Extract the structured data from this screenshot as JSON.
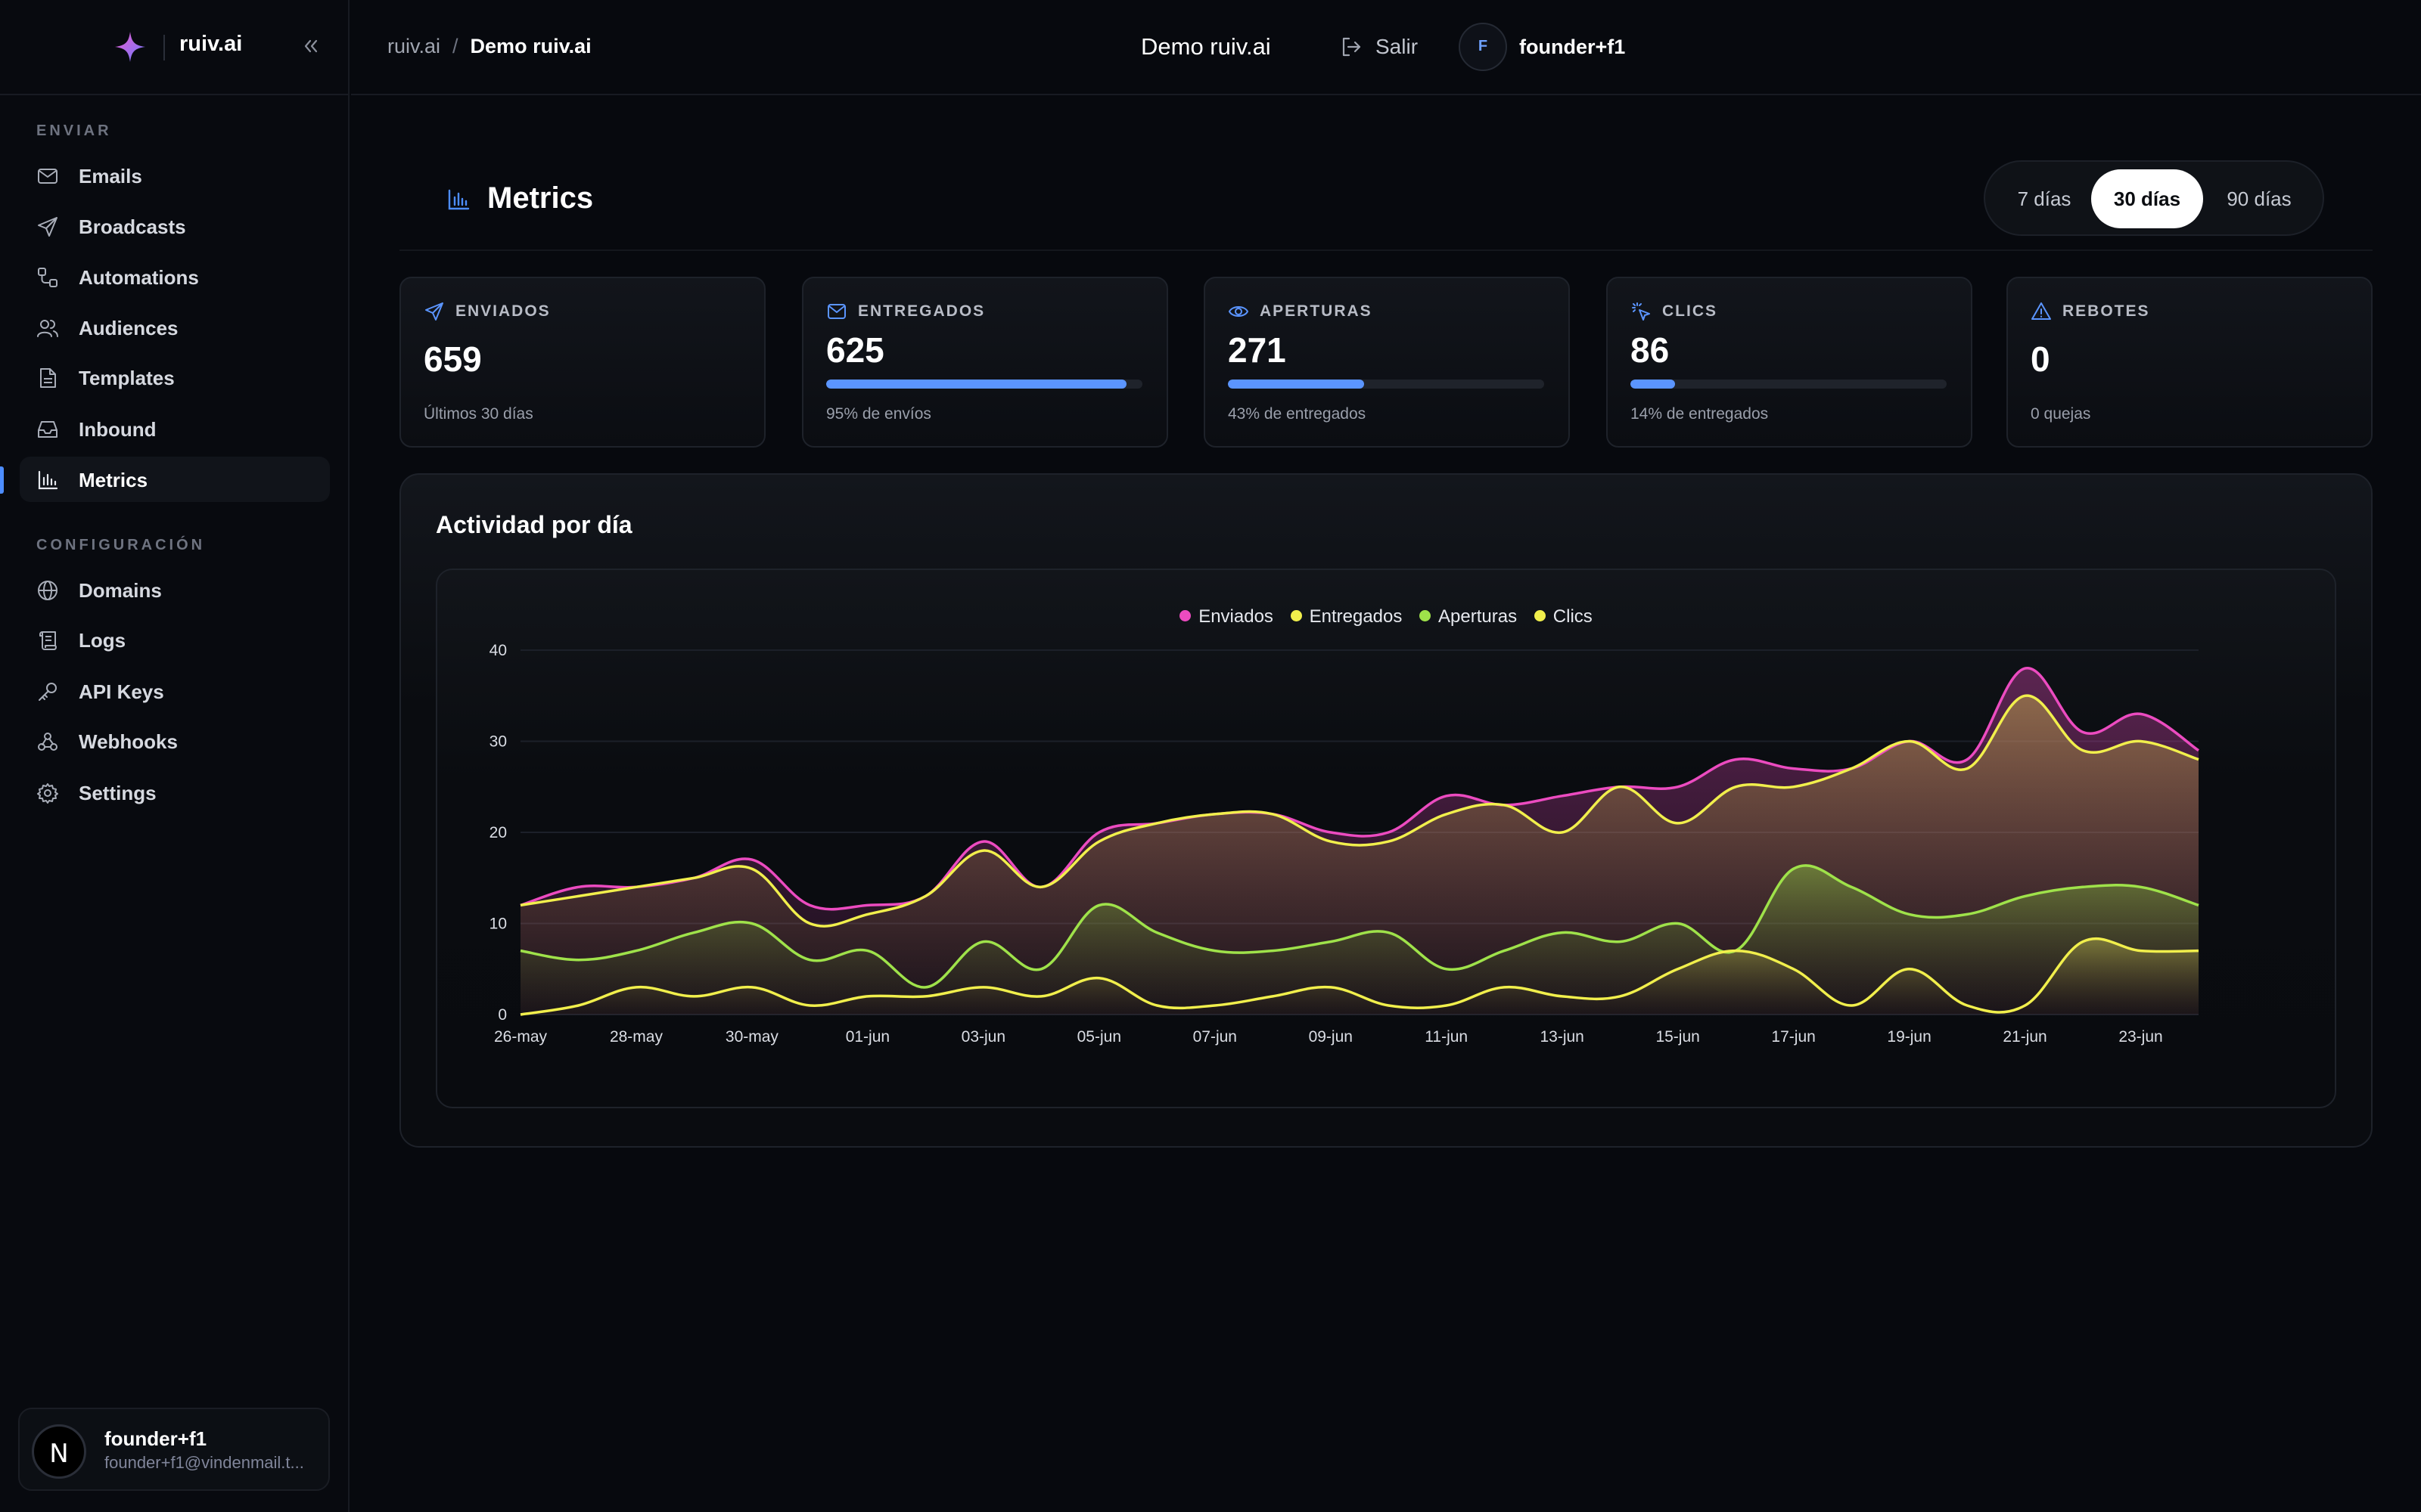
{
  "brand": {
    "name": "ruiv.ai"
  },
  "sidebar": {
    "sections": [
      {
        "label": "ENVIAR",
        "items": [
          {
            "label": "Emails",
            "icon": "mail-icon"
          },
          {
            "label": "Broadcasts",
            "icon": "send-icon"
          },
          {
            "label": "Automations",
            "icon": "workflow-icon"
          },
          {
            "label": "Audiences",
            "icon": "users-icon"
          },
          {
            "label": "Templates",
            "icon": "file-text-icon"
          },
          {
            "label": "Inbound",
            "icon": "inbox-icon"
          },
          {
            "label": "Metrics",
            "icon": "bar-chart-icon",
            "active": true
          }
        ]
      },
      {
        "label": "CONFIGURACIÓN",
        "items": [
          {
            "label": "Domains",
            "icon": "globe-icon"
          },
          {
            "label": "Logs",
            "icon": "scroll-icon"
          },
          {
            "label": "API Keys",
            "icon": "key-icon"
          },
          {
            "label": "Webhooks",
            "icon": "webhook-icon"
          },
          {
            "label": "Settings",
            "icon": "gear-icon"
          }
        ]
      }
    ],
    "user": {
      "name": "founder+f1",
      "email": "founder+f1@vindenmail.t...",
      "avatar_letter": "N"
    }
  },
  "header": {
    "breadcrumb": [
      "ruiv.ai",
      "Demo ruiv.ai"
    ],
    "org_name": "Demo ruiv.ai",
    "logout_label": "Salir",
    "user_initial": "F",
    "user_name": "founder+f1"
  },
  "page": {
    "title": "Metrics",
    "ranges": [
      "7 días",
      "30 días",
      "90 días"
    ],
    "selected_range": "30 días"
  },
  "stats": [
    {
      "label": "ENVIADOS",
      "icon": "send-icon",
      "value": "659",
      "sub": "Últimos 30 días",
      "progress": null
    },
    {
      "label": "ENTREGADOS",
      "icon": "mail-icon",
      "value": "625",
      "sub": "95% de envíos",
      "progress": 0.95
    },
    {
      "label": "APERTURAS",
      "icon": "eye-icon",
      "value": "271",
      "sub": "43% de entregados",
      "progress": 0.43
    },
    {
      "label": "CLICS",
      "icon": "pointer-click-icon",
      "value": "86",
      "sub": "14% de entregados",
      "progress": 0.14
    },
    {
      "label": "REBOTES",
      "icon": "alert-triangle-icon",
      "value": "0",
      "sub": "0 quejas",
      "progress": null
    }
  ],
  "activity": {
    "title": "Actividad por día"
  },
  "chart_data": {
    "type": "area",
    "title": "Actividad por día",
    "ylim": [
      0,
      40
    ],
    "yticks": [
      0,
      10,
      20,
      30,
      40
    ],
    "grid": true,
    "legend_position": "top-center",
    "x": [
      "26-may",
      "27-may",
      "28-may",
      "29-may",
      "30-may",
      "31-may",
      "01-jun",
      "02-jun",
      "03-jun",
      "04-jun",
      "05-jun",
      "06-jun",
      "07-jun",
      "08-jun",
      "09-jun",
      "10-jun",
      "11-jun",
      "12-jun",
      "13-jun",
      "14-jun",
      "15-jun",
      "16-jun",
      "17-jun",
      "18-jun",
      "19-jun",
      "20-jun",
      "21-jun",
      "22-jun",
      "23-jun",
      "24-jun"
    ],
    "xticks": [
      "26-may",
      "28-may",
      "30-may",
      "01-jun",
      "03-jun",
      "05-jun",
      "07-jun",
      "09-jun",
      "11-jun",
      "13-jun",
      "15-jun",
      "17-jun",
      "19-jun",
      "21-jun",
      "23-jun"
    ],
    "series": [
      {
        "name": "Enviados",
        "color": "#ec4bc0",
        "values": [
          12,
          14,
          14,
          15,
          17,
          12,
          12,
          13,
          19,
          14,
          20,
          21,
          22,
          22,
          20,
          20,
          24,
          23,
          24,
          25,
          25,
          28,
          27,
          27,
          30,
          28,
          38,
          31,
          33,
          29
        ]
      },
      {
        "name": "Entregados",
        "color": "#f1ef4c",
        "values": [
          12,
          13,
          14,
          15,
          16,
          10,
          11,
          13,
          18,
          14,
          19,
          21,
          22,
          22,
          19,
          19,
          22,
          23,
          20,
          25,
          21,
          25,
          25,
          27,
          30,
          27,
          35,
          29,
          30,
          28
        ]
      },
      {
        "name": "Aperturas",
        "color": "#9fe24a",
        "values": [
          7,
          6,
          7,
          9,
          10,
          6,
          7,
          3,
          8,
          5,
          12,
          9,
          7,
          7,
          8,
          9,
          5,
          7,
          9,
          8,
          10,
          7,
          16,
          14,
          11,
          11,
          13,
          14,
          14,
          12
        ]
      },
      {
        "name": "Clics",
        "color": "#f1ef4c",
        "values": [
          0,
          1,
          3,
          2,
          3,
          1,
          2,
          2,
          3,
          2,
          4,
          1,
          1,
          2,
          3,
          1,
          1,
          3,
          2,
          2,
          5,
          7,
          5,
          1,
          5,
          1,
          1,
          8,
          7,
          7
        ]
      }
    ]
  }
}
